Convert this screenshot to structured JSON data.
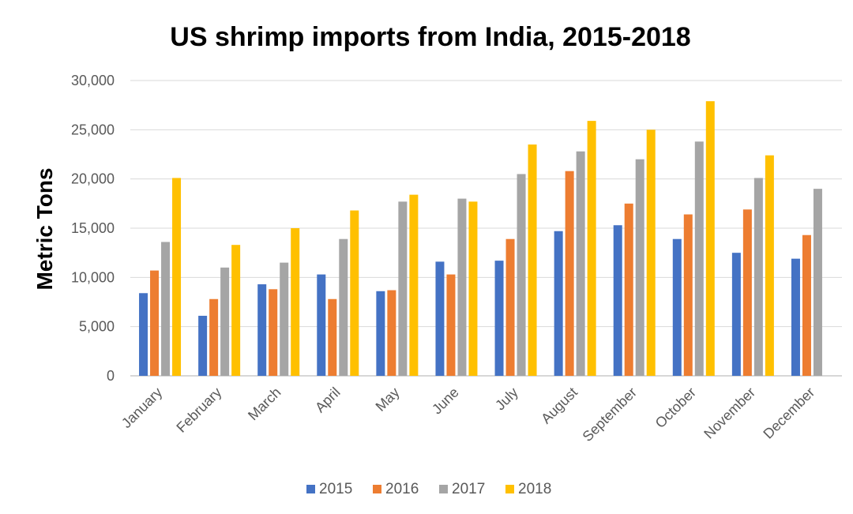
{
  "chart_data": {
    "type": "bar",
    "title": "US shrimp imports from India, 2015-2018",
    "xlabel": "",
    "ylabel": "Metric Tons",
    "ylim": [
      0,
      30000
    ],
    "yticks": [
      0,
      5000,
      10000,
      15000,
      20000,
      25000,
      30000
    ],
    "ytick_labels": [
      "0",
      "5,000",
      "10,000",
      "15,000",
      "20,000",
      "25,000",
      "30,000"
    ],
    "grid": true,
    "legend_position": "bottom",
    "categories": [
      "January",
      "February",
      "March",
      "April",
      "May",
      "June",
      "July",
      "August",
      "September",
      "October",
      "November",
      "December"
    ],
    "series": [
      {
        "name": "2015",
        "color": "#4472C4",
        "values": [
          8400,
          6100,
          9300,
          10300,
          8600,
          11600,
          11700,
          14700,
          15300,
          13900,
          12500,
          11900
        ]
      },
      {
        "name": "2016",
        "color": "#ED7D31",
        "values": [
          10700,
          7800,
          8800,
          7800,
          8700,
          10300,
          13900,
          20800,
          17500,
          16400,
          16900,
          14300
        ]
      },
      {
        "name": "2017",
        "color": "#A5A5A5",
        "values": [
          13600,
          11000,
          11500,
          13900,
          17700,
          18000,
          20500,
          22800,
          22000,
          23800,
          20100,
          19000
        ]
      },
      {
        "name": "2018",
        "color": "#FFC000",
        "values": [
          20100,
          13300,
          15000,
          16800,
          18400,
          17700,
          23500,
          25900,
          25000,
          27900,
          22400,
          null
        ]
      }
    ]
  }
}
